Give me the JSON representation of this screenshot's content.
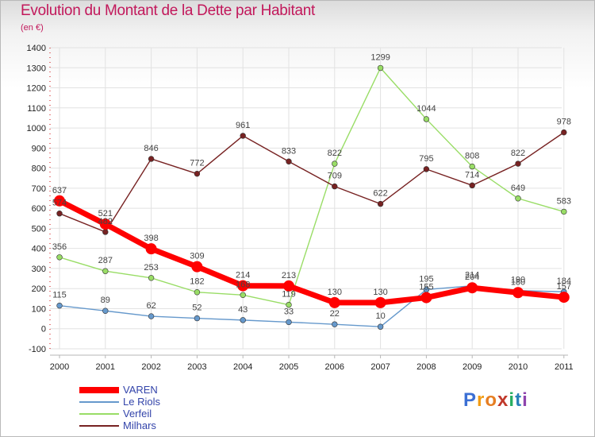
{
  "chart_data": {
    "type": "line",
    "title": "Evolution du Montant de la Dette par Habitant",
    "subtitle": "(en €)",
    "categories": [
      "2000",
      "2001",
      "2002",
      "2003",
      "2004",
      "2005",
      "2006",
      "2007",
      "2008",
      "2009",
      "2010",
      "2011"
    ],
    "ylim": [
      -100,
      1400
    ],
    "yticks": [
      -100,
      0,
      100,
      200,
      300,
      400,
      500,
      600,
      700,
      800,
      900,
      1000,
      1100,
      1200,
      1300,
      1400
    ],
    "series": [
      {
        "name": "VAREN",
        "color": "#ff0000",
        "values": [
          637,
          521,
          398,
          309,
          214,
          213,
          130,
          130,
          155,
          204,
          180,
          157
        ]
      },
      {
        "name": "Le Riols",
        "color": "#6699cc",
        "values": [
          115,
          89,
          62,
          52,
          43,
          33,
          22,
          10,
          195,
          214,
          190,
          184
        ]
      },
      {
        "name": "Verfeil",
        "color": "#99dd66",
        "values": [
          356,
          287,
          253,
          182,
          168,
          119,
          822,
          1299,
          1044,
          808,
          649,
          583
        ]
      },
      {
        "name": "Milhars",
        "color": "#772222",
        "values": [
          574,
          482,
          846,
          772,
          961,
          833,
          709,
          622,
          795,
          714,
          822,
          978
        ]
      }
    ]
  },
  "legend": {
    "items": [
      "VAREN",
      "Le Riols",
      "Verfeil",
      "Milhars"
    ]
  },
  "logo": {
    "letters": [
      "P",
      "r",
      "o",
      "x",
      "i",
      "t",
      "i"
    ],
    "colors": [
      "#3b6fd4",
      "#f39c12",
      "#e67e22",
      "#c0392b",
      "#27ae60",
      "#2980b9",
      "#8e44ad"
    ]
  }
}
